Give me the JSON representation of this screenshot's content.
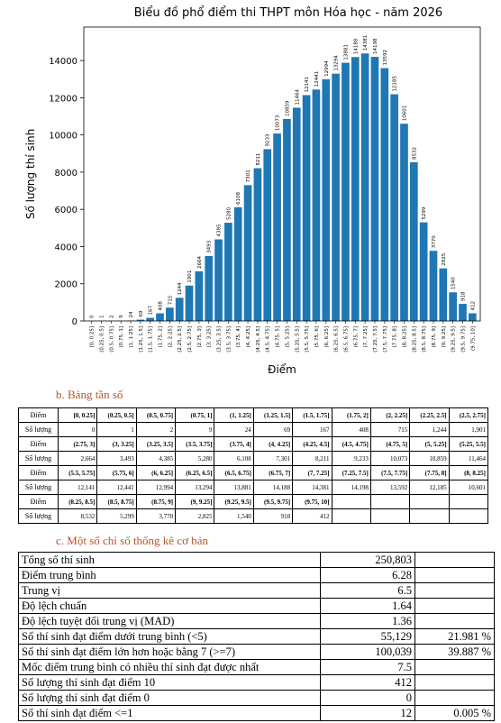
{
  "chart_data": {
    "type": "bar",
    "title": "Biểu đồ phổ điểm thi THPT môn Hóa học - năm 2026",
    "x_label": "Điểm",
    "y_label": "Số lượng thí sinh",
    "categories": [
      "[0, 0.25]",
      "(0.25, 0.5]",
      "(0.5, 0.75]",
      "(0.75, 1]",
      "(1, 1.25]",
      "(1.25, 1.5]",
      "(1.5, 1.75]",
      "(1.75, 2]",
      "(2, 2.25]",
      "(2.25, 2.5]",
      "(2.5, 2.75]",
      "(2.75, 3]",
      "(3, 3.25]",
      "(3.25, 3.5]",
      "(3.5, 3.75]",
      "(3.75, 4]",
      "(4, 4.25]",
      "(4.25, 4.5]",
      "(4.5, 4.75]",
      "(4.75, 5]",
      "(5, 5.25]",
      "(5.25, 5.5]",
      "(5.5, 5.75]",
      "(5.75, 6]",
      "(6, 6.25]",
      "(6.25, 6.5]",
      "(6.5, 6.75]",
      "(6.75, 7]",
      "(7, 7.25]",
      "(7.25, 7.5]",
      "(7.5, 7.75]",
      "(7.75, 8]",
      "(8, 8.25]",
      "(8.25, 8.5]",
      "(8.5, 8.75]",
      "(8.75, 9]",
      "(9, 9.25]",
      "(9.25, 9.5]",
      "(9.5, 9.75]",
      "(9.75, 10]"
    ],
    "values": [
      0,
      1,
      2,
      9,
      24,
      69,
      167,
      408,
      715,
      1244,
      1901,
      2664,
      3493,
      4385,
      5280,
      6108,
      7301,
      8211,
      9233,
      10073,
      10859,
      11464,
      12141,
      12441,
      12994,
      13294,
      13881,
      14188,
      14381,
      14198,
      13592,
      12185,
      10601,
      8532,
      5299,
      3770,
      2825,
      1540,
      918,
      412
    ],
    "color": "#1f77b4",
    "ylim": [
      0,
      15800
    ],
    "yticks": [
      0,
      2000,
      4000,
      6000,
      8000,
      10000,
      12000,
      14000
    ]
  },
  "frequency_table": {
    "title": "b. Bảng tần số",
    "blocks": [
      {
        "score_label": "Điểm",
        "count_label": "Số lượng",
        "counts": [
          "0",
          "1",
          "2",
          "9",
          "24",
          "69",
          "167",
          "408",
          "715",
          "1,244",
          "1,901"
        ]
      },
      {
        "score_label": "Điểm",
        "count_label": "Số lượng",
        "counts": [
          "2,664",
          "3,493",
          "4,385",
          "5,280",
          "6,108",
          "7,301",
          "8,211",
          "9,233",
          "10,073",
          "10,859",
          "11,464"
        ]
      },
      {
        "score_label": "Điểm",
        "count_label": "Số lượng",
        "counts": [
          "12,141",
          "12,441",
          "12,994",
          "13,294",
          "13,881",
          "14,188",
          "14,381",
          "14,198",
          "13,592",
          "12,185",
          "10,601"
        ]
      },
      {
        "score_label": "Điểm",
        "count_label": "Số lượng",
        "counts": [
          "8,532",
          "5,299",
          "3,770",
          "2,825",
          "1,540",
          "918",
          "412"
        ]
      }
    ]
  },
  "stats_table": {
    "title": "c. Một số chỉ số thống kê cơ bản",
    "rows": [
      [
        "Tổng số thí sinh",
        "250,803"
      ],
      [
        "Điểm trung bình",
        "6.28"
      ],
      [
        "Trung vị",
        "6.5"
      ],
      [
        "Độ lệch chuẩn",
        "1.64"
      ],
      [
        "Độ lệch tuyệt đối trung vị (MAD)",
        "1.36"
      ],
      [
        "Số thí sinh đạt điểm dưới trung bình (<5)",
        "55,129",
        "21.981 %"
      ],
      [
        "Số thí sinh đạt điểm lớn hơn hoặc bằng 7 (>=7)",
        "100,039",
        "39.887 %"
      ],
      [
        "Mốc điểm trung bình có nhiều thí sinh đạt được nhất",
        "7.5"
      ],
      [
        "Số lượng thí sinh đạt điểm 10",
        "412"
      ],
      [
        "Số lượng thí sinh đạt điểm 0",
        "0"
      ],
      [
        "Số thí sinh đạt điểm <=1",
        "12",
        "0.005 %"
      ]
    ]
  }
}
